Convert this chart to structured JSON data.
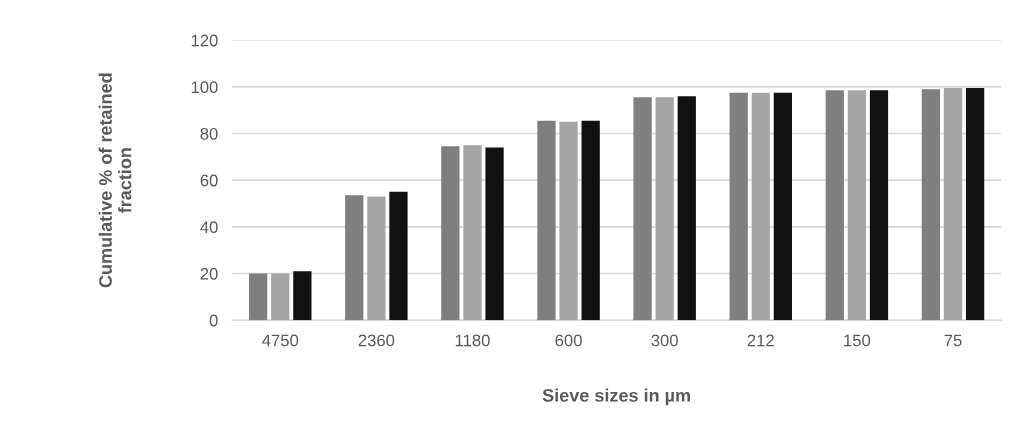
{
  "chart_data": {
    "type": "bar",
    "xlabel": "Sieve sizes in µm",
    "ylabel": "Cumulative % of retained\nfraction",
    "categories": [
      "4750",
      "2360",
      "1180",
      "600",
      "300",
      "212",
      "150",
      "75"
    ],
    "series": [
      {
        "color": "#7f7f7f",
        "values": [
          20,
          53.5,
          74.5,
          85.5,
          95.5,
          97.5,
          98.5,
          99
        ]
      },
      {
        "color": "#a6a6a6",
        "values": [
          20,
          53,
          75,
          85,
          95.5,
          97.5,
          98.5,
          99.5
        ]
      },
      {
        "color": "#111111",
        "values": [
          21,
          55,
          74,
          85.5,
          96,
          97.5,
          98.5,
          99.5
        ]
      }
    ],
    "ylim": [
      0,
      120
    ],
    "yticks": [
      0,
      20,
      40,
      60,
      80,
      100,
      120
    ],
    "grid": "y"
  }
}
